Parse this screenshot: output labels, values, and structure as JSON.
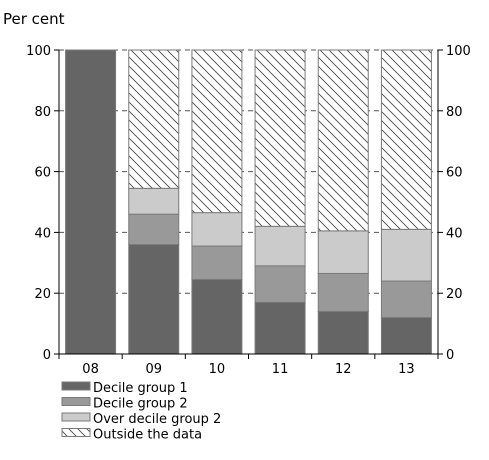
{
  "chart_data": {
    "type": "bar",
    "stacked": true,
    "ylabel": "Per cent",
    "ylim": [
      0,
      100
    ],
    "yticks": [
      0,
      20,
      40,
      60,
      80,
      100
    ],
    "right_axis": true,
    "grid": "dashed-horizontal",
    "legend_placement": "bottom-left",
    "categories": [
      "08",
      "09",
      "10",
      "11",
      "12",
      "13"
    ],
    "series": [
      {
        "name": "Decile group 1",
        "color": "#656565",
        "pattern": "solid",
        "values": [
          100,
          36,
          24.5,
          17,
          14,
          12
        ]
      },
      {
        "name": "Decile group 2",
        "color": "#999999",
        "pattern": "solid",
        "values": [
          0,
          10,
          11,
          12,
          12.5,
          12
        ]
      },
      {
        "name": "Over decile group 2",
        "color": "#cbcbcb",
        "pattern": "solid",
        "values": [
          0,
          8.5,
          11,
          13,
          14,
          17
        ]
      },
      {
        "name": "Outside the data",
        "color": "#ffffff",
        "pattern": "diagonal-hatch",
        "values": [
          0,
          45.5,
          53.5,
          58,
          59.5,
          59
        ]
      }
    ]
  }
}
